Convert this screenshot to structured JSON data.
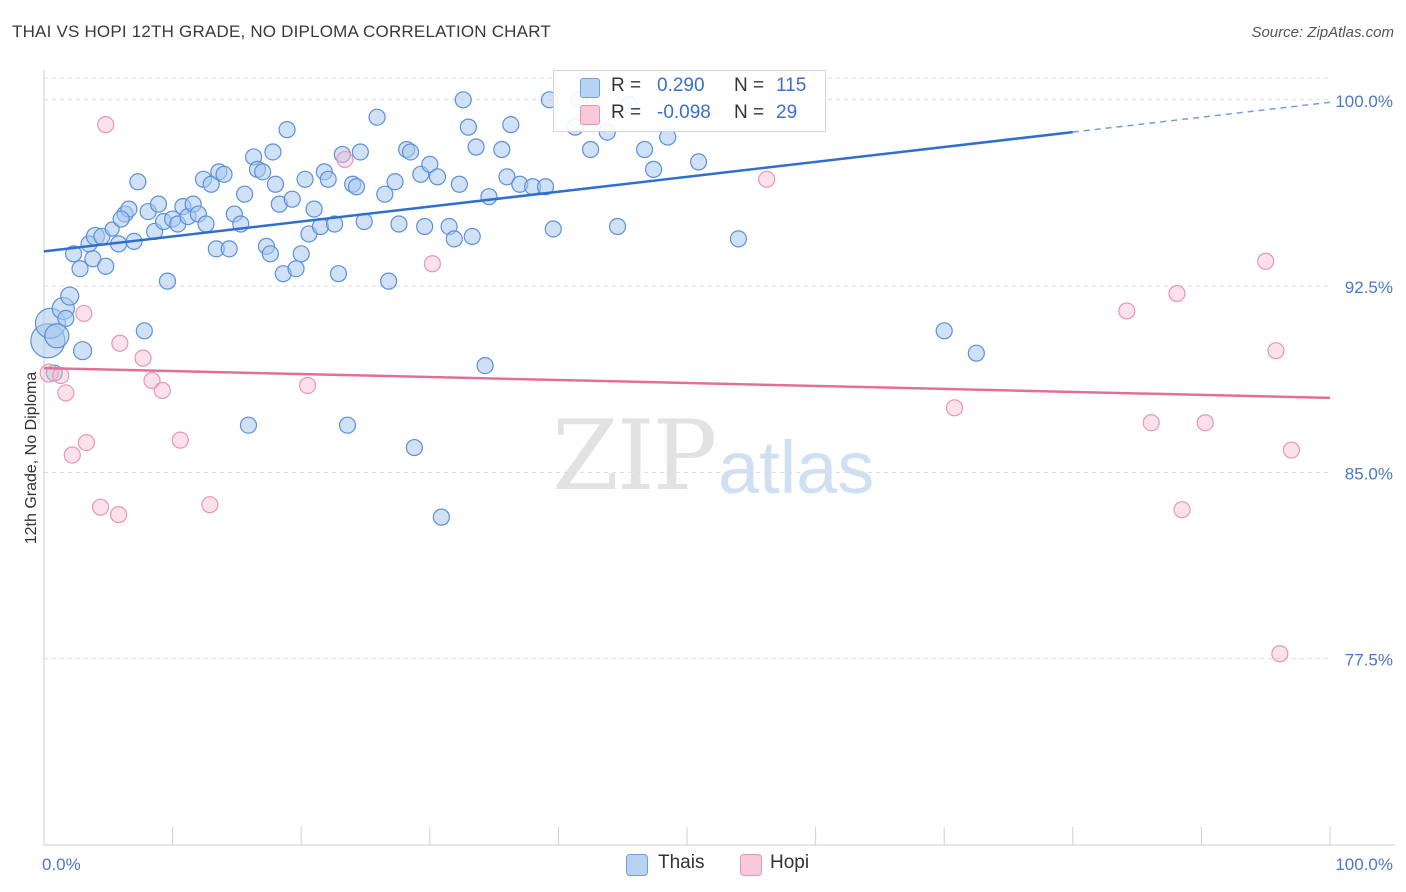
{
  "title": "THAI VS HOPI 12TH GRADE, NO DIPLOMA CORRELATION CHART",
  "source": "Source: ZipAtlas.com",
  "watermark": {
    "zip": "ZIP",
    "atlas": "atlas"
  },
  "colors": {
    "thais": "#4a86d8",
    "thais_fill": "#a9c8ef",
    "hopi": "#e36f95",
    "hopi_fill": "#f6bfd1",
    "tick": "#4a78c8"
  },
  "legend": {
    "thais": {
      "r_label": "R =",
      "r_value": "0.290",
      "n_label": "N =",
      "n_value": "115"
    },
    "hopi": {
      "r_label": "R =",
      "r_value": "-0.098",
      "n_label": "N =",
      "n_value": "29"
    }
  },
  "bottom_legend": {
    "thais": "Thais",
    "hopi": "Hopi"
  },
  "chart_data": {
    "type": "scatter",
    "title": "THAI VS HOPI 12TH GRADE, NO DIPLOMA CORRELATION CHART",
    "xlabel": "",
    "ylabel": "12th Grade, No Diploma",
    "xlim": [
      0,
      100
    ],
    "ylim": [
      70.0,
      101.2
    ],
    "x_tick_labels": [
      "0.0%",
      "100.0%"
    ],
    "y_ticks": [
      {
        "value": 100.0,
        "label": "100.0%"
      },
      {
        "value": 92.5,
        "label": "92.5%"
      },
      {
        "value": 85.0,
        "label": "85.0%"
      },
      {
        "value": 77.5,
        "label": "77.5%"
      }
    ],
    "grid": true,
    "legend_position": "top-center",
    "series": [
      {
        "name": "Thais",
        "trend": {
          "x0": 0,
          "y0": 93.9,
          "x1": 80,
          "y1": 98.7,
          "dashed_to_x": 100,
          "dashed_to_y": 99.9
        },
        "points": [
          [
            0.3,
            90.3
          ],
          [
            0.5,
            91.0
          ],
          [
            1.0,
            90.5
          ],
          [
            1.5,
            91.6
          ],
          [
            2.0,
            92.1
          ],
          [
            2.3,
            93.8
          ],
          [
            2.8,
            93.2
          ],
          [
            3.0,
            89.9
          ],
          [
            3.5,
            94.2
          ],
          [
            3.8,
            93.6
          ],
          [
            4.0,
            94.5
          ],
          [
            4.5,
            94.5
          ],
          [
            4.8,
            93.3
          ],
          [
            5.3,
            94.8
          ],
          [
            5.8,
            94.2
          ],
          [
            6.3,
            95.4
          ],
          [
            6.6,
            95.6
          ],
          [
            7.0,
            94.3
          ],
          [
            7.3,
            96.7
          ],
          [
            7.8,
            90.7
          ],
          [
            8.1,
            95.5
          ],
          [
            8.6,
            94.7
          ],
          [
            8.9,
            95.8
          ],
          [
            9.3,
            95.1
          ],
          [
            9.6,
            92.7
          ],
          [
            10.0,
            95.2
          ],
          [
            10.4,
            95.0
          ],
          [
            10.8,
            95.7
          ],
          [
            11.2,
            95.3
          ],
          [
            11.6,
            95.8
          ],
          [
            12.0,
            95.4
          ],
          [
            12.4,
            96.8
          ],
          [
            12.6,
            95.0
          ],
          [
            13.0,
            96.6
          ],
          [
            13.4,
            94.0
          ],
          [
            13.6,
            97.1
          ],
          [
            14.0,
            97.0
          ],
          [
            14.4,
            94.0
          ],
          [
            14.8,
            95.4
          ],
          [
            15.3,
            95.0
          ],
          [
            15.6,
            96.2
          ],
          [
            15.9,
            86.9
          ],
          [
            16.3,
            97.7
          ],
          [
            16.6,
            97.2
          ],
          [
            17.0,
            97.1
          ],
          [
            17.3,
            94.1
          ],
          [
            17.6,
            93.8
          ],
          [
            18.0,
            96.6
          ],
          [
            18.3,
            95.8
          ],
          [
            18.6,
            93.0
          ],
          [
            18.9,
            98.8
          ],
          [
            19.3,
            96.0
          ],
          [
            19.6,
            93.2
          ],
          [
            20.0,
            93.8
          ],
          [
            20.3,
            96.8
          ],
          [
            20.6,
            94.6
          ],
          [
            21.0,
            95.6
          ],
          [
            21.5,
            94.9
          ],
          [
            21.8,
            97.1
          ],
          [
            22.1,
            96.8
          ],
          [
            22.6,
            95.0
          ],
          [
            22.9,
            93.0
          ],
          [
            23.2,
            97.8
          ],
          [
            23.6,
            86.9
          ],
          [
            24.0,
            96.6
          ],
          [
            24.3,
            96.5
          ],
          [
            24.6,
            97.9
          ],
          [
            24.9,
            95.1
          ],
          [
            25.9,
            99.3
          ],
          [
            26.5,
            96.2
          ],
          [
            26.8,
            92.7
          ],
          [
            27.3,
            96.7
          ],
          [
            27.6,
            95.0
          ],
          [
            28.2,
            98.0
          ],
          [
            28.5,
            97.9
          ],
          [
            28.8,
            86.0
          ],
          [
            29.3,
            97.0
          ],
          [
            29.6,
            94.9
          ],
          [
            30.0,
            97.4
          ],
          [
            30.6,
            96.9
          ],
          [
            30.9,
            83.2
          ],
          [
            31.5,
            94.9
          ],
          [
            31.9,
            94.4
          ],
          [
            32.3,
            96.6
          ],
          [
            32.6,
            100.0
          ],
          [
            33.0,
            98.9
          ],
          [
            33.3,
            94.5
          ],
          [
            33.6,
            98.1
          ],
          [
            34.3,
            89.3
          ],
          [
            34.6,
            96.1
          ],
          [
            35.6,
            98.0
          ],
          [
            36.0,
            96.9
          ],
          [
            36.3,
            99.0
          ],
          [
            37.0,
            96.6
          ],
          [
            38.0,
            96.5
          ],
          [
            39.0,
            96.5
          ],
          [
            39.3,
            100.0
          ],
          [
            39.6,
            94.8
          ],
          [
            41.3,
            98.9
          ],
          [
            41.6,
            100.0
          ],
          [
            42.5,
            98.0
          ],
          [
            43.8,
            98.7
          ],
          [
            44.6,
            94.9
          ],
          [
            45.5,
            99.8
          ],
          [
            46.7,
            98.0
          ],
          [
            47.4,
            97.2
          ],
          [
            48.5,
            98.5
          ],
          [
            50.9,
            97.5
          ],
          [
            54.0,
            94.4
          ],
          [
            70.0,
            90.7
          ],
          [
            72.5,
            89.8
          ],
          [
            0.8,
            89.0
          ],
          [
            1.7,
            91.2
          ],
          [
            6.0,
            95.2
          ],
          [
            17.8,
            97.9
          ]
        ],
        "sizes": [
          34,
          30,
          24,
          22,
          18,
          16,
          16,
          18,
          16,
          16,
          18,
          16,
          16,
          14,
          16,
          16,
          16,
          16,
          16,
          16,
          16,
          16,
          16,
          16,
          16,
          16,
          16,
          16,
          16,
          16,
          16,
          16,
          16,
          16,
          16,
          16,
          16,
          16,
          16,
          16,
          16,
          16,
          16,
          16,
          16,
          16,
          16,
          16,
          16,
          16,
          16,
          16,
          16,
          16,
          16,
          16,
          16,
          16,
          16,
          16,
          16,
          16,
          16,
          16,
          16,
          16,
          16,
          16,
          16,
          16,
          16,
          16,
          16,
          16,
          16,
          16,
          16,
          16,
          16,
          16,
          16,
          16,
          16,
          16,
          16,
          16,
          16,
          16,
          16,
          16,
          16,
          16,
          16,
          16,
          16,
          16,
          16,
          16,
          16,
          16,
          16,
          16,
          16,
          16,
          16,
          16,
          16,
          16,
          16,
          16,
          16,
          16,
          16,
          16,
          16
        ]
      },
      {
        "name": "Hopi",
        "trend": {
          "x0": 0,
          "y0": 89.2,
          "x1": 100,
          "y1": 88.0
        },
        "points": [
          [
            0.4,
            89.0
          ],
          [
            1.3,
            88.9
          ],
          [
            1.7,
            88.2
          ],
          [
            2.2,
            85.7
          ],
          [
            3.1,
            91.4
          ],
          [
            3.3,
            86.2
          ],
          [
            4.4,
            83.6
          ],
          [
            4.8,
            99.0
          ],
          [
            5.8,
            83.3
          ],
          [
            5.9,
            90.2
          ],
          [
            7.7,
            89.6
          ],
          [
            8.4,
            88.7
          ],
          [
            9.2,
            88.3
          ],
          [
            10.6,
            86.3
          ],
          [
            12.9,
            83.7
          ],
          [
            20.5,
            88.5
          ],
          [
            23.4,
            97.6
          ],
          [
            30.2,
            93.4
          ],
          [
            56.2,
            96.8
          ],
          [
            70.8,
            87.6
          ],
          [
            84.2,
            91.5
          ],
          [
            86.1,
            87.0
          ],
          [
            88.1,
            92.2
          ],
          [
            88.5,
            83.5
          ],
          [
            90.3,
            87.0
          ],
          [
            95.8,
            89.9
          ],
          [
            95.0,
            93.5
          ],
          [
            97.0,
            85.9
          ],
          [
            96.1,
            77.7
          ]
        ],
        "sizes": [
          18,
          16,
          16,
          16,
          16,
          16,
          16,
          16,
          16,
          16,
          16,
          16,
          16,
          16,
          16,
          16,
          16,
          16,
          16,
          16,
          16,
          16,
          16,
          16,
          16,
          16,
          16,
          16,
          16
        ]
      }
    ]
  }
}
